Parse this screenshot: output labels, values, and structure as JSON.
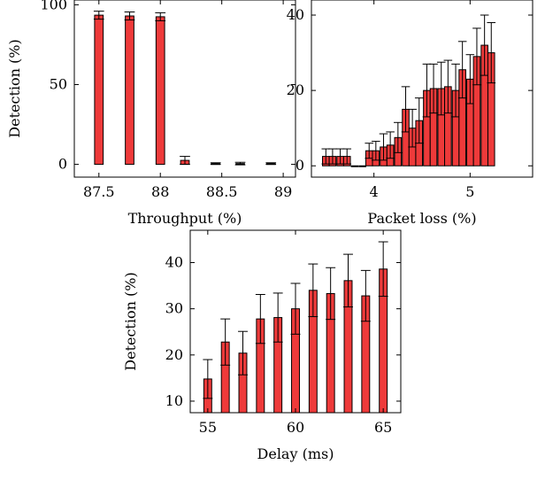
{
  "chart_data": [
    {
      "type": "bar",
      "xlabel": "Throughput (%)",
      "ylabel": "Detection (%)",
      "xlim": [
        87.3,
        89.1
      ],
      "ylim": [
        -8,
        103
      ],
      "xticks": [
        87.5,
        88,
        88.5,
        89
      ],
      "xtick_labels": [
        "87.5",
        "88",
        "88.5",
        "89"
      ],
      "yticks": [
        0,
        50,
        100
      ],
      "ytick_labels": [
        "0",
        "50",
        "100"
      ],
      "bar_width": 0.07,
      "bars": [
        {
          "x": 87.5,
          "y": 93.5,
          "err": 2.5
        },
        {
          "x": 87.75,
          "y": 93,
          "err": 2.5
        },
        {
          "x": 88.0,
          "y": 92.5,
          "err": 2.5
        },
        {
          "x": 88.2,
          "y": 2.5,
          "err": 2.5
        },
        {
          "x": 88.45,
          "y": 0.5,
          "err": 0.5
        },
        {
          "x": 88.65,
          "y": 0.5,
          "err": 0.8
        },
        {
          "x": 88.9,
          "y": 0.5,
          "err": 0.5
        }
      ]
    },
    {
      "type": "bar",
      "xlabel": "Packet loss (%)",
      "ylabel": "",
      "xlim": [
        3.35,
        5.65
      ],
      "ylim": [
        -3,
        44
      ],
      "xticks": [
        4,
        5
      ],
      "xtick_labels": [
        "4",
        "5"
      ],
      "yticks": [
        0,
        20,
        40
      ],
      "ytick_labels": [
        "0",
        "20",
        "40"
      ],
      "bar_width": 0.07,
      "bars": [
        {
          "x": 3.5,
          "y": 2.5,
          "err": 2
        },
        {
          "x": 3.57,
          "y": 2.5,
          "err": 2
        },
        {
          "x": 3.65,
          "y": 2.5,
          "err": 2
        },
        {
          "x": 3.72,
          "y": 2.5,
          "err": 2
        },
        {
          "x": 3.8,
          "y": 0,
          "err": 0
        },
        {
          "x": 3.88,
          "y": 0,
          "err": 0
        },
        {
          "x": 3.95,
          "y": 4,
          "err": 2
        },
        {
          "x": 4.02,
          "y": 4,
          "err": 2.5
        },
        {
          "x": 4.1,
          "y": 5,
          "err": 3.5
        },
        {
          "x": 4.17,
          "y": 5.5,
          "err": 3.5
        },
        {
          "x": 4.25,
          "y": 7.5,
          "err": 4
        },
        {
          "x": 4.33,
          "y": 15,
          "err": 6
        },
        {
          "x": 4.4,
          "y": 10,
          "err": 5
        },
        {
          "x": 4.47,
          "y": 12,
          "err": 6
        },
        {
          "x": 4.55,
          "y": 20,
          "err": 7
        },
        {
          "x": 4.62,
          "y": 20.5,
          "err": 6.5
        },
        {
          "x": 4.7,
          "y": 20.5,
          "err": 7
        },
        {
          "x": 4.77,
          "y": 21,
          "err": 7
        },
        {
          "x": 4.85,
          "y": 20,
          "err": 7
        },
        {
          "x": 4.92,
          "y": 25.5,
          "err": 7.5
        },
        {
          "x": 5.0,
          "y": 23,
          "err": 6.5
        },
        {
          "x": 5.07,
          "y": 29,
          "err": 7.5
        },
        {
          "x": 5.15,
          "y": 32,
          "err": 8
        },
        {
          "x": 5.22,
          "y": 30,
          "err": 8
        }
      ]
    },
    {
      "type": "bar",
      "xlabel": "Delay (ms)",
      "ylabel": "Detection (%)",
      "xlim": [
        54.0,
        66.0
      ],
      "ylim": [
        7.5,
        47
      ],
      "xticks": [
        55,
        60,
        65
      ],
      "xtick_labels": [
        "55",
        "60",
        "65"
      ],
      "yticks": [
        10,
        20,
        30,
        40
      ],
      "ytick_labels": [
        "10",
        "20",
        "30",
        "40"
      ],
      "bar_width": 0.45,
      "bars": [
        {
          "x": 55,
          "y": 14.8,
          "err": 4.2
        },
        {
          "x": 56,
          "y": 22.8,
          "err": 5.0
        },
        {
          "x": 57,
          "y": 20.4,
          "err": 4.7
        },
        {
          "x": 58,
          "y": 27.8,
          "err": 5.3
        },
        {
          "x": 59,
          "y": 28.1,
          "err": 5.3
        },
        {
          "x": 60,
          "y": 30.0,
          "err": 5.5
        },
        {
          "x": 61,
          "y": 34.0,
          "err": 5.7
        },
        {
          "x": 62,
          "y": 33.3,
          "err": 5.6
        },
        {
          "x": 63,
          "y": 36.1,
          "err": 5.7
        },
        {
          "x": 64,
          "y": 32.8,
          "err": 5.5
        },
        {
          "x": 65,
          "y": 38.6,
          "err": 5.9
        }
      ]
    }
  ]
}
